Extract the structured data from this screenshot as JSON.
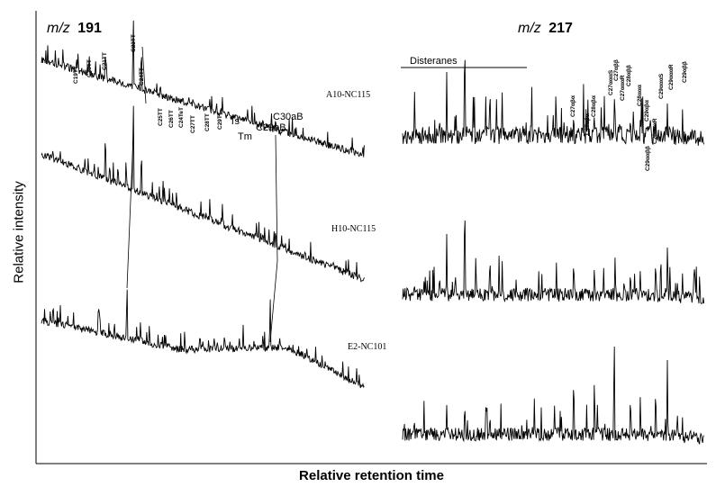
{
  "chart_data": {
    "type": "line",
    "xlabel": "Relative retention time",
    "ylabel": "Relative intensity",
    "panels": [
      {
        "ion_prefix": "m/z",
        "ion_mass": "191",
        "peak_labels": [
          "C19TT",
          "C20TT",
          "C21TT",
          "C23TT",
          "C24TT",
          "C25TT",
          "C26TT",
          "C24TeT",
          "C27TT",
          "C28TT",
          "C29TT",
          "Ts",
          "Tm",
          "C29aB",
          "C30aB"
        ]
      },
      {
        "ion_prefix": "m/z",
        "ion_mass": "217",
        "group_label": "Disteranes",
        "peak_labels": [
          "C27αβα",
          "C27αβα",
          "C28αβα",
          "C27αααS",
          "C27αββ",
          "C27αααR",
          "C28αββ",
          "C28ααα",
          "C29αβα",
          "C29αααS",
          "C29αααR",
          "C29αββ",
          "C29ααββ",
          "C28αααR"
        ]
      }
    ],
    "series": [
      {
        "name": "A10-NC115"
      },
      {
        "name": "H10-NC115"
      },
      {
        "name": "E2-NC101"
      }
    ]
  }
}
